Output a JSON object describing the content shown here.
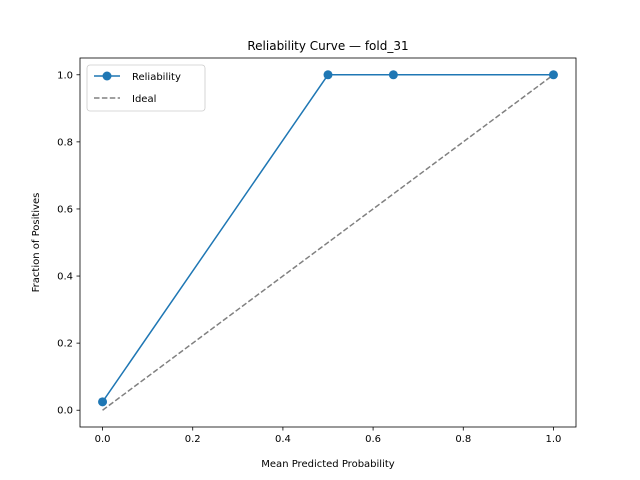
{
  "chart_data": {
    "type": "line",
    "title": "Reliability Curve — fold_31",
    "xlabel": "Mean Predicted Probability",
    "ylabel": "Fraction of Positives",
    "xlim": [
      -0.05,
      1.05
    ],
    "ylim": [
      -0.05,
      1.05
    ],
    "xticks": [
      "0.0",
      "0.2",
      "0.4",
      "0.6",
      "0.8",
      "1.0"
    ],
    "yticks": [
      "0.0",
      "0.2",
      "0.4",
      "0.6",
      "0.8",
      "1.0"
    ],
    "grid": false,
    "legend_position": "top-left",
    "series": [
      {
        "name": "Reliability",
        "style": "solid-with-markers",
        "color": "#1f77b4",
        "x": [
          0.0,
          0.5,
          0.645,
          1.0
        ],
        "y": [
          0.025,
          1.0,
          1.0,
          1.0
        ]
      },
      {
        "name": "Ideal",
        "style": "dashed",
        "color": "#808080",
        "x": [
          0.0,
          1.0
        ],
        "y": [
          0.0,
          1.0
        ]
      }
    ]
  }
}
